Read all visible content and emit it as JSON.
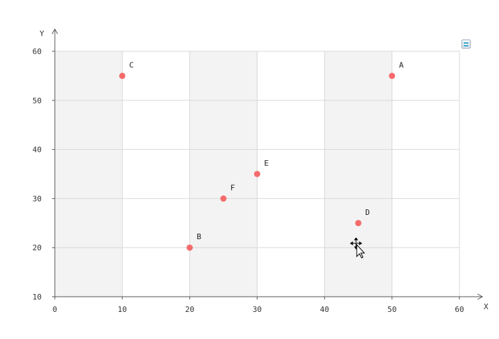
{
  "chart_data": {
    "type": "scatter",
    "title": "",
    "xlabel": "X",
    "ylabel": "Y",
    "xlim": [
      0,
      60
    ],
    "ylim": [
      10,
      60
    ],
    "x_ticks": [
      0,
      10,
      20,
      30,
      40,
      50,
      60
    ],
    "y_ticks": [
      10,
      20,
      30,
      40,
      50,
      60
    ],
    "x_tick_labels": [
      "0",
      "10",
      "20",
      "30",
      "40",
      "50",
      "60"
    ],
    "y_tick_labels": [
      "10",
      "20",
      "30",
      "40",
      "50",
      "60"
    ],
    "grid": true,
    "alternating_band_color": "#f3f3f3",
    "point_color": "#f46b6b",
    "points": [
      {
        "label": "A",
        "x": 50,
        "y": 55
      },
      {
        "label": "B",
        "x": 20,
        "y": 20
      },
      {
        "label": "C",
        "x": 10,
        "y": 55
      },
      {
        "label": "D",
        "x": 45,
        "y": 25
      },
      {
        "label": "E",
        "x": 30,
        "y": 35
      },
      {
        "label": "F",
        "x": 25,
        "y": 30
      }
    ]
  },
  "toolbar": {
    "menu_icon": "menu-icon"
  },
  "cursor": {
    "icon": "move-cursor-icon"
  }
}
